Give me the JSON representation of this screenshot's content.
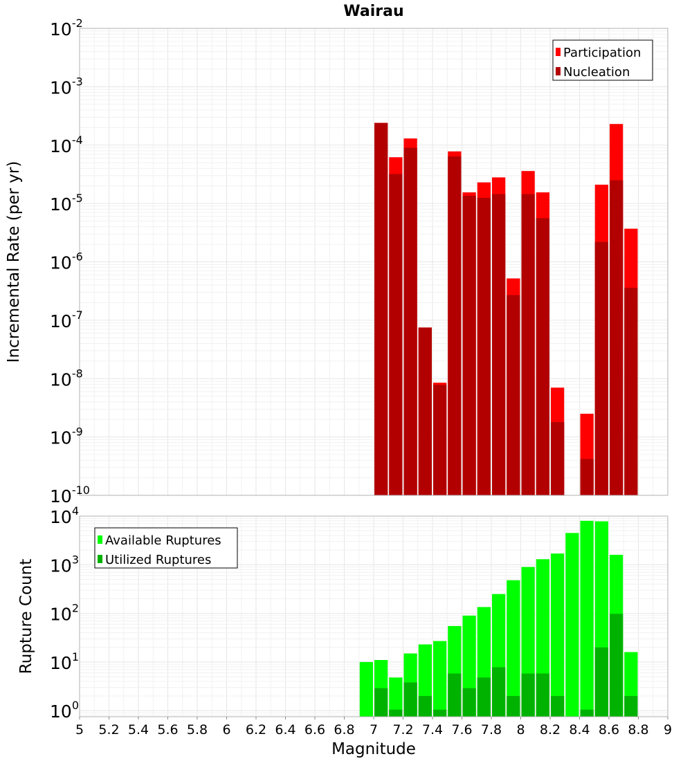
{
  "chart_data": {
    "title": "Wairau",
    "xlabel": "Magnitude",
    "xlim": [
      5,
      9
    ],
    "xticks": [
      "5",
      "5.2",
      "5.4",
      "5.6",
      "5.8",
      "6",
      "6.2",
      "6.4",
      "6.6",
      "6.8",
      "7",
      "7.2",
      "7.4",
      "7.6",
      "7.8",
      "8",
      "8.2",
      "8.4",
      "8.6",
      "8.8",
      "9"
    ],
    "grid": true,
    "panels": [
      {
        "type": "bar",
        "yscale": "log",
        "ylabel": "Incremental Rate (per yr)",
        "ylim": [
          1e-10,
          0.01
        ],
        "yticks": [
          {
            "base": "10",
            "exp": "-2"
          },
          {
            "base": "10",
            "exp": "-3"
          },
          {
            "base": "10",
            "exp": "-4"
          },
          {
            "base": "10",
            "exp": "-5"
          },
          {
            "base": "10",
            "exp": "-6"
          },
          {
            "base": "10",
            "exp": "-7"
          },
          {
            "base": "10",
            "exp": "-8"
          },
          {
            "base": "10",
            "exp": "-9"
          },
          {
            "base": "10",
            "exp": "-10"
          }
        ],
        "legend_position": "top-right",
        "x": [
          7.05,
          7.15,
          7.25,
          7.35,
          7.45,
          7.55,
          7.65,
          7.75,
          7.85,
          7.95,
          8.05,
          8.15,
          8.25,
          8.35,
          8.45,
          8.55,
          8.65,
          8.75
        ],
        "series": [
          {
            "name": "Participation",
            "color": "#ff0000",
            "values": [
              0.00024,
              6.2e-05,
              0.00013,
              7.5e-08,
              8.5e-09,
              7.8e-05,
              1.55e-05,
              2.3e-05,
              2.8e-05,
              5.2e-07,
              3.6e-05,
              1.55e-05,
              7e-09,
              0,
              2.5e-09,
              2.1e-05,
              0.00023,
              3.7e-06
            ]
          },
          {
            "name": "Nucleation",
            "color": "#b20000",
            "values": [
              0.00024,
              3.2e-05,
              9e-05,
              7.5e-08,
              7.8e-09,
              6.4e-05,
              1.35e-05,
              1.25e-05,
              1.45e-05,
              2.7e-07,
              1.45e-05,
              5.6e-06,
              1.8e-09,
              0,
              4.2e-10,
              2.2e-06,
              2.5e-05,
              3.6e-07
            ]
          }
        ]
      },
      {
        "type": "bar",
        "yscale": "log",
        "ylabel": "Rupture Count",
        "ylim": [
          0.75,
          10000
        ],
        "yticks": [
          {
            "base": "10",
            "exp": "4"
          },
          {
            "base": "10",
            "exp": "3"
          },
          {
            "base": "10",
            "exp": "2"
          },
          {
            "base": "10",
            "exp": "1"
          },
          {
            "base": "10",
            "exp": "0"
          }
        ],
        "legend_position": "top-left",
        "x": [
          6.95,
          7.05,
          7.15,
          7.25,
          7.35,
          7.45,
          7.55,
          7.65,
          7.75,
          7.85,
          7.95,
          8.05,
          8.15,
          8.25,
          8.35,
          8.45,
          8.55,
          8.65,
          8.75
        ],
        "series": [
          {
            "name": "Available Ruptures",
            "color": "#00ff00",
            "values": [
              10,
              11,
              4.8,
              15,
              23,
              27,
              55,
              90,
              135,
              250,
              480,
              900,
              1300,
              1700,
              4500,
              8000,
              7800,
              1600,
              16
            ]
          },
          {
            "name": "Utilized Ruptures",
            "color": "#00b200",
            "values": [
              0,
              2.9,
              1.05,
              3.8,
              2,
              1.05,
              5.8,
              2.9,
              4.8,
              7.8,
              2,
              5.8,
              5.8,
              2,
              0,
              1.05,
              20,
              98,
              2
            ]
          }
        ]
      }
    ]
  }
}
